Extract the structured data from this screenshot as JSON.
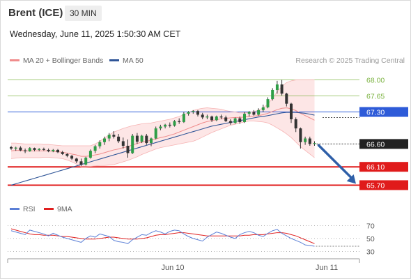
{
  "header": {
    "instrument": "Brent (ICE)",
    "interval": "30 MIN",
    "datetime": "Wednesday, June 11, 2025 1:50:30 AM CET"
  },
  "legend": {
    "items": [
      {
        "label": "MA 20 + Bollinger Bands",
        "color": "#f08c8c"
      },
      {
        "label": "MA 50",
        "color": "#2f5597"
      }
    ],
    "credit": "Research © 2025 Trading Central"
  },
  "rsi_legend": {
    "items": [
      {
        "label": "RSI",
        "color": "#5b7fd6"
      },
      {
        "label": "9MA",
        "color": "#e02020"
      }
    ]
  },
  "chart_data": [
    {
      "type": "candlestick",
      "title": "",
      "ylim": [
        65.6,
        68.1
      ],
      "xticks": [
        "Jun 10",
        "Jun 11"
      ],
      "levels": [
        {
          "value": 68.0,
          "label": "68.00",
          "kind": "resistance",
          "color": "#7cb342"
        },
        {
          "value": 67.65,
          "label": "67.65",
          "kind": "resistance",
          "color": "#7cb342"
        },
        {
          "value": 67.3,
          "label": "67.30",
          "kind": "pivot",
          "color": "#2e5bd8"
        },
        {
          "value": 66.6,
          "label": "66.60",
          "kind": "last",
          "color": "#222222"
        },
        {
          "value": 66.1,
          "label": "66.10",
          "kind": "support",
          "color": "#e01b1b"
        },
        {
          "value": 65.7,
          "label": "65.70",
          "kind": "support",
          "color": "#e01b1b"
        }
      ],
      "candles": [
        [
          66.53,
          66.56,
          66.47,
          66.5
        ],
        [
          66.5,
          66.54,
          66.45,
          66.52
        ],
        [
          66.52,
          66.55,
          66.44,
          66.46
        ],
        [
          66.46,
          66.5,
          66.4,
          66.44
        ],
        [
          66.44,
          66.53,
          66.43,
          66.51
        ],
        [
          66.51,
          66.52,
          66.44,
          66.47
        ],
        [
          66.47,
          66.51,
          66.44,
          66.49
        ],
        [
          66.49,
          66.52,
          66.45,
          66.47
        ],
        [
          66.47,
          66.5,
          66.42,
          66.44
        ],
        [
          66.44,
          66.49,
          66.42,
          66.47
        ],
        [
          66.47,
          66.49,
          66.4,
          66.42
        ],
        [
          66.42,
          66.45,
          66.36,
          66.38
        ],
        [
          66.38,
          66.4,
          66.31,
          66.34
        ],
        [
          66.34,
          66.36,
          66.25,
          66.28
        ],
        [
          66.28,
          66.3,
          66.18,
          66.22
        ],
        [
          66.22,
          66.28,
          66.12,
          66.15
        ],
        [
          66.15,
          66.32,
          66.13,
          66.3
        ],
        [
          66.3,
          66.48,
          66.28,
          66.45
        ],
        [
          66.45,
          66.58,
          66.4,
          66.55
        ],
        [
          66.55,
          66.68,
          66.5,
          66.64
        ],
        [
          66.64,
          66.76,
          66.58,
          66.72
        ],
        [
          66.72,
          66.84,
          66.66,
          66.8
        ],
        [
          66.8,
          66.88,
          66.72,
          66.76
        ],
        [
          66.76,
          66.82,
          66.62,
          66.66
        ],
        [
          66.66,
          66.74,
          66.5,
          66.56
        ],
        [
          66.56,
          66.7,
          66.3,
          66.4
        ],
        [
          66.4,
          66.82,
          66.38,
          66.78
        ],
        [
          66.78,
          66.84,
          66.6,
          66.65
        ],
        [
          66.65,
          66.8,
          66.62,
          66.78
        ],
        [
          66.78,
          66.82,
          66.58,
          66.62
        ],
        [
          66.62,
          66.74,
          66.55,
          66.72
        ],
        [
          66.72,
          66.98,
          66.7,
          66.94
        ],
        [
          66.94,
          67.02,
          66.9,
          66.98
        ],
        [
          66.98,
          67.04,
          66.94,
          67.02
        ],
        [
          67.02,
          67.07,
          66.96,
          67.0
        ],
        [
          67.0,
          67.12,
          66.98,
          67.1
        ],
        [
          67.1,
          67.16,
          67.04,
          67.08
        ],
        [
          67.08,
          67.3,
          67.06,
          67.26
        ],
        [
          67.26,
          67.32,
          67.22,
          67.3
        ],
        [
          67.3,
          67.34,
          67.26,
          67.32
        ],
        [
          67.32,
          67.34,
          67.2,
          67.24
        ],
        [
          67.24,
          67.28,
          67.14,
          67.18
        ],
        [
          67.18,
          67.24,
          67.14,
          67.2
        ],
        [
          67.2,
          67.22,
          67.08,
          67.12
        ],
        [
          67.12,
          67.22,
          67.1,
          67.2
        ],
        [
          67.2,
          67.24,
          67.14,
          67.18
        ],
        [
          67.18,
          67.22,
          67.08,
          67.1
        ],
        [
          67.1,
          67.14,
          67.02,
          67.06
        ],
        [
          67.06,
          67.18,
          67.04,
          67.16
        ],
        [
          67.16,
          67.2,
          67.04,
          67.08
        ],
        [
          67.08,
          67.3,
          67.06,
          67.26
        ],
        [
          67.26,
          67.32,
          67.2,
          67.3
        ],
        [
          67.3,
          67.34,
          67.22,
          67.24
        ],
        [
          67.24,
          67.38,
          67.22,
          67.34
        ],
        [
          67.34,
          67.46,
          67.3,
          67.4
        ],
        [
          67.4,
          67.62,
          67.38,
          67.58
        ],
        [
          67.58,
          67.82,
          67.55,
          67.78
        ],
        [
          67.78,
          67.98,
          67.7,
          67.9
        ],
        [
          67.9,
          68.0,
          67.66,
          67.7
        ],
        [
          67.7,
          67.72,
          67.42,
          67.48
        ],
        [
          67.48,
          67.5,
          67.06,
          67.14
        ],
        [
          67.14,
          67.18,
          66.86,
          66.94
        ],
        [
          66.94,
          66.96,
          66.5,
          66.64
        ],
        [
          66.64,
          66.76,
          66.58,
          66.72
        ],
        [
          66.72,
          66.76,
          66.56,
          66.6
        ],
        [
          66.6,
          66.66,
          66.56,
          66.62
        ]
      ],
      "ma20": [
        66.45,
        66.46,
        66.46,
        66.45,
        66.45,
        66.45,
        66.45,
        66.45,
        66.45,
        66.44,
        66.43,
        66.42,
        66.4,
        66.38,
        66.36,
        66.33,
        66.33,
        66.34,
        66.36,
        66.38,
        66.41,
        66.44,
        66.47,
        66.49,
        66.52,
        66.54,
        66.58,
        66.61,
        66.64,
        66.66,
        66.68,
        66.71,
        66.74,
        66.76,
        66.79,
        66.82,
        66.86,
        66.9,
        66.94,
        66.98,
        67.02,
        67.06,
        67.09,
        67.11,
        67.13,
        67.15,
        67.16,
        67.17,
        67.18,
        67.18,
        67.19,
        67.2,
        67.21,
        67.22,
        67.24,
        67.27,
        67.31,
        67.35,
        67.38,
        67.39,
        67.37,
        67.33,
        67.27,
        67.22,
        67.17,
        67.12
      ],
      "bb_upper": [
        66.62,
        66.62,
        66.61,
        66.6,
        66.6,
        66.6,
        66.6,
        66.59,
        66.59,
        66.58,
        66.57,
        66.56,
        66.56,
        66.56,
        66.56,
        66.56,
        66.56,
        66.56,
        66.6,
        66.66,
        66.73,
        66.8,
        66.86,
        66.9,
        66.94,
        66.97,
        67.0,
        67.02,
        67.04,
        67.05,
        67.06,
        67.08,
        67.1,
        67.12,
        67.14,
        67.17,
        67.2,
        67.24,
        67.29,
        67.33,
        67.36,
        67.38,
        67.39,
        67.38,
        67.37,
        67.36,
        67.33,
        67.31,
        67.3,
        67.28,
        67.28,
        67.29,
        67.31,
        67.34,
        67.39,
        67.47,
        67.6,
        67.74,
        67.86,
        67.94,
        67.98,
        68.0,
        68.0,
        68.0,
        68.0,
        68.0
      ],
      "bb_lower": [
        66.28,
        66.29,
        66.3,
        66.3,
        66.3,
        66.3,
        66.3,
        66.31,
        66.31,
        66.3,
        66.29,
        66.28,
        66.25,
        66.21,
        66.16,
        66.1,
        66.1,
        66.11,
        66.12,
        66.13,
        66.13,
        66.14,
        66.15,
        66.18,
        66.21,
        66.24,
        66.28,
        66.32,
        66.37,
        66.41,
        66.45,
        66.49,
        66.52,
        66.54,
        66.56,
        66.58,
        66.6,
        66.62,
        66.64,
        66.66,
        66.7,
        66.75,
        66.8,
        66.85,
        66.89,
        66.93,
        66.97,
        67.01,
        67.03,
        67.06,
        67.08,
        67.1,
        67.1,
        67.09,
        67.08,
        67.06,
        67.01,
        66.95,
        66.89,
        66.82,
        66.74,
        66.64,
        66.54,
        66.46,
        66.38,
        66.3
      ],
      "ma50": [
        65.7,
        65.73,
        65.76,
        65.79,
        65.82,
        65.85,
        65.88,
        65.91,
        65.94,
        65.97,
        66.0,
        66.03,
        66.06,
        66.09,
        66.12,
        66.15,
        66.18,
        66.21,
        66.24,
        66.27,
        66.3,
        66.33,
        66.36,
        66.39,
        66.42,
        66.45,
        66.48,
        66.51,
        66.54,
        66.57,
        66.6,
        66.63,
        66.66,
        66.69,
        66.72,
        66.75,
        66.78,
        66.81,
        66.84,
        66.87,
        66.9,
        66.93,
        66.96,
        66.99,
        67.01,
        67.03,
        67.05,
        67.07,
        67.09,
        67.11,
        67.13,
        67.15,
        67.17,
        67.19,
        67.2,
        67.22,
        67.24,
        67.26,
        67.28,
        67.29,
        67.29,
        67.29,
        67.28,
        67.27,
        67.25,
        67.23
      ],
      "forecast": {
        "from": 66.6,
        "to": 65.7
      }
    },
    {
      "type": "line",
      "title": "",
      "ylim": [
        25,
        78
      ],
      "yticks": [
        70,
        50,
        30
      ],
      "series": [
        {
          "name": "RSI",
          "values": [
            62,
            60,
            58,
            56,
            63,
            61,
            59,
            57,
            54,
            58,
            55,
            52,
            50,
            48,
            46,
            44,
            50,
            54,
            52,
            57,
            55,
            53,
            47,
            45,
            44,
            42,
            48,
            52,
            56,
            55,
            59,
            62,
            60,
            57,
            61,
            63,
            62,
            57,
            53,
            50,
            48,
            46,
            52,
            56,
            60,
            58,
            55,
            52,
            50,
            56,
            59,
            61,
            59,
            55,
            53,
            58,
            62,
            64,
            58,
            54,
            50,
            47,
            44,
            40,
            39,
            38
          ]
        },
        {
          "name": "9MA",
          "values": [
            65,
            63,
            61,
            59,
            57,
            56,
            56,
            55,
            55,
            55,
            54,
            53,
            53,
            52,
            51,
            50,
            49,
            49,
            49,
            50,
            51,
            52,
            52,
            51,
            50,
            49,
            49,
            49,
            50,
            51,
            53,
            55,
            56,
            56,
            57,
            58,
            59,
            59,
            58,
            57,
            56,
            55,
            54,
            54,
            54,
            54,
            54,
            54,
            54,
            54,
            55,
            55,
            56,
            56,
            56,
            57,
            58,
            59,
            59,
            58,
            56,
            54,
            51,
            48,
            45,
            42
          ]
        }
      ]
    }
  ]
}
